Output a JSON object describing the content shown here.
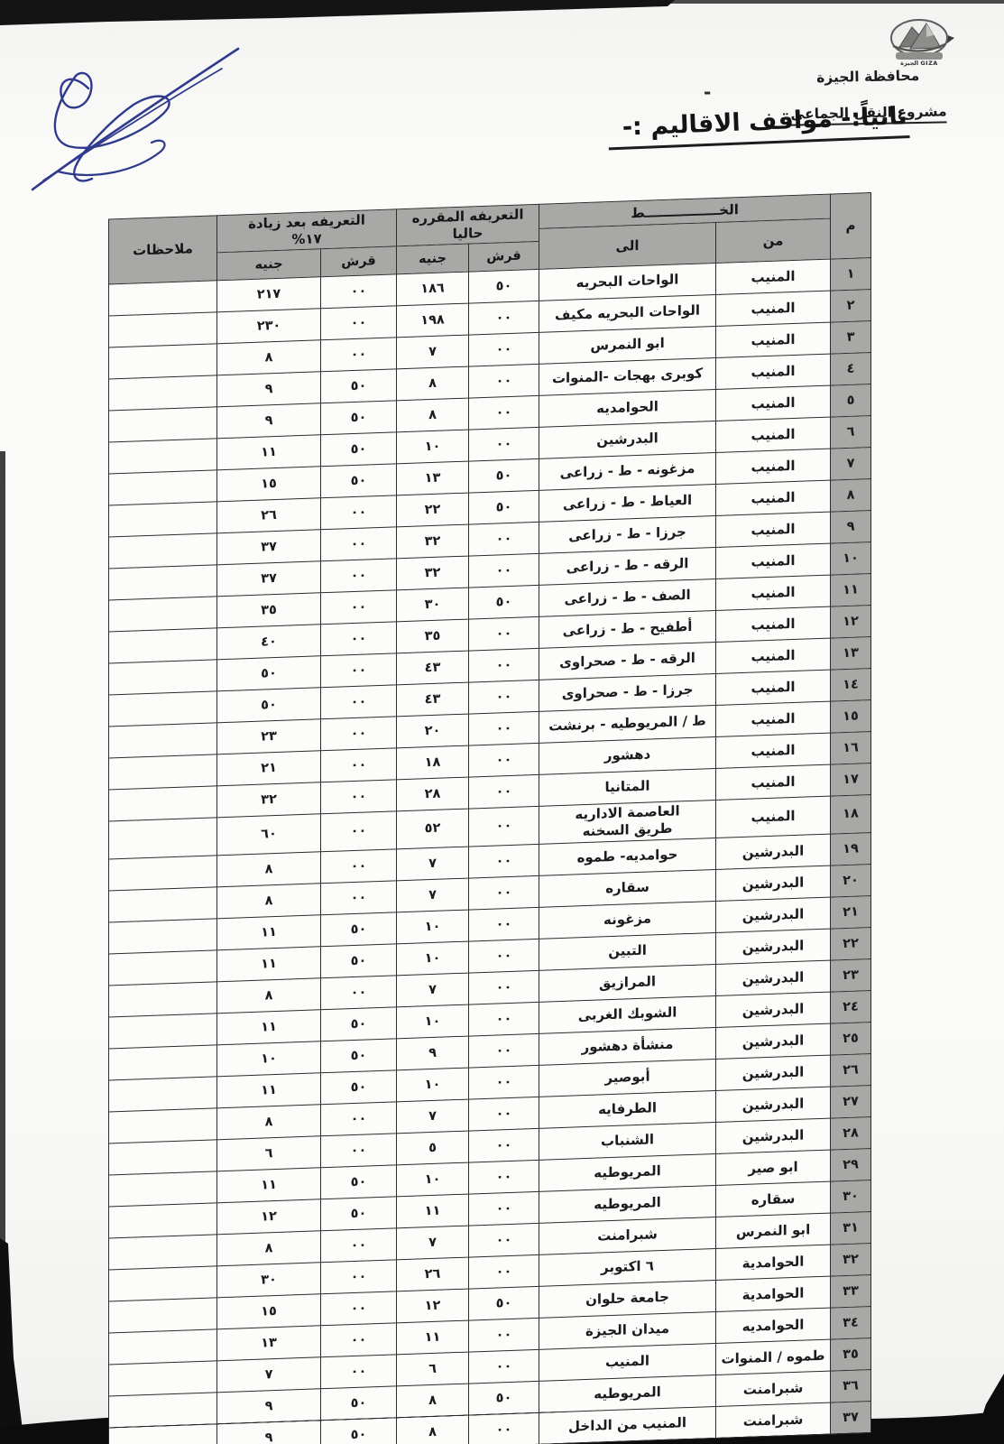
{
  "page": {
    "org_line1": "محافظة الجيزة",
    "org_line2": "مشروع النقل الجماعى",
    "dash": "-",
    "section_title": "ثانياً:- مواقف الاقاليم :-",
    "logo_caption": "الجيزة GIZA"
  },
  "table": {
    "headers": {
      "no": "م",
      "line": "الخــــــــــــــــط",
      "from": "من",
      "to": "الى",
      "current_tariff_line1": "التعريفه المقرره",
      "current_tariff_line2": "حاليا",
      "increased_tariff_line1": "التعريفه بعد زيادة",
      "increased_tariff_line2": "١٧%",
      "qirsh": "قرش",
      "genih": "جنيه",
      "notes": "ملاحظات"
    },
    "rows": [
      [
        "١",
        "المنيب",
        "الواحات البحريه",
        "٥٠",
        "١٨٦",
        "٠٠",
        "٢١٧",
        ""
      ],
      [
        "٢",
        "المنيب",
        "الواحات البحريه مكيف",
        "٠٠",
        "١٩٨",
        "٠٠",
        "٢٣٠",
        ""
      ],
      [
        "٣",
        "المنيب",
        "ابو النمرس",
        "٠٠",
        "٧",
        "٠٠",
        "٨",
        ""
      ],
      [
        "٤",
        "المنيب",
        "كوبرى بهجات -المنوات",
        "٠٠",
        "٨",
        "٥٠",
        "٩",
        ""
      ],
      [
        "٥",
        "المنيب",
        "الحوامديه",
        "٠٠",
        "٨",
        "٥٠",
        "٩",
        ""
      ],
      [
        "٦",
        "المنيب",
        "البدرشين",
        "٠٠",
        "١٠",
        "٥٠",
        "١١",
        ""
      ],
      [
        "٧",
        "المنيب",
        "مزغونه - ط - زراعى",
        "٥٠",
        "١٣",
        "٥٠",
        "١٥",
        ""
      ],
      [
        "٨",
        "المنيب",
        "العياط - ط - زراعى",
        "٥٠",
        "٢٢",
        "٠٠",
        "٢٦",
        ""
      ],
      [
        "٩",
        "المنيب",
        "جرزا - ط - زراعى",
        "٠٠",
        "٣٢",
        "٠٠",
        "٣٧",
        ""
      ],
      [
        "١٠",
        "المنيب",
        "الرقه - ط - زراعى",
        "٠٠",
        "٣٢",
        "٠٠",
        "٣٧",
        ""
      ],
      [
        "١١",
        "المنيب",
        "الصف - ط - زراعى",
        "٥٠",
        "٣٠",
        "٠٠",
        "٣٥",
        ""
      ],
      [
        "١٢",
        "المنيب",
        "أطفيح - ط - زراعى",
        "٠٠",
        "٣٥",
        "٠٠",
        "٤٠",
        ""
      ],
      [
        "١٣",
        "المنيب",
        "الرقه - ط - صحراوى",
        "٠٠",
        "٤٣",
        "٠٠",
        "٥٠",
        ""
      ],
      [
        "١٤",
        "المنيب",
        "جرزا - ط - صحراوى",
        "٠٠",
        "٤٣",
        "٠٠",
        "٥٠",
        ""
      ],
      [
        "١٥",
        "المنيب",
        "ط / المريوطيه - برنشت",
        "٠٠",
        "٢٠",
        "٠٠",
        "٢٣",
        ""
      ],
      [
        "١٦",
        "المنيب",
        "دهشور",
        "٠٠",
        "١٨",
        "٠٠",
        "٢١",
        ""
      ],
      [
        "١٧",
        "المنيب",
        "المتانيا",
        "٠٠",
        "٢٨",
        "٠٠",
        "٣٢",
        ""
      ],
      [
        "١٨",
        "المنيب",
        "العاصمة الاداريه\nطريق السخنه",
        "٠٠",
        "٥٢",
        "٠٠",
        "٦٠",
        ""
      ],
      [
        "١٩",
        "البدرشين",
        "حوامديه- طموه",
        "٠٠",
        "٧",
        "٠٠",
        "٨",
        ""
      ],
      [
        "٢٠",
        "البدرشين",
        "سقاره",
        "٠٠",
        "٧",
        "٠٠",
        "٨",
        ""
      ],
      [
        "٢١",
        "البدرشين",
        "مزغونه",
        "٠٠",
        "١٠",
        "٥٠",
        "١١",
        ""
      ],
      [
        "٢٢",
        "البدرشين",
        "التبين",
        "٠٠",
        "١٠",
        "٥٠",
        "١١",
        ""
      ],
      [
        "٢٣",
        "البدرشين",
        "المرازيق",
        "٠٠",
        "٧",
        "٠٠",
        "٨",
        ""
      ],
      [
        "٢٤",
        "البدرشين",
        "الشوبك الغربى",
        "٠٠",
        "١٠",
        "٥٠",
        "١١",
        ""
      ],
      [
        "٢٥",
        "البدرشين",
        "منشأة دهشور",
        "٠٠",
        "٩",
        "٥٠",
        "١٠",
        ""
      ],
      [
        "٢٦",
        "البدرشين",
        "أبوصير",
        "٠٠",
        "١٠",
        "٥٠",
        "١١",
        ""
      ],
      [
        "٢٧",
        "البدرشين",
        "الطرفايه",
        "٠٠",
        "٧",
        "٠٠",
        "٨",
        ""
      ],
      [
        "٢٨",
        "البدرشين",
        "الشنباب",
        "٠٠",
        "٥",
        "٠٠",
        "٦",
        ""
      ],
      [
        "٢٩",
        "ابو صير",
        "المريوطيه",
        "٠٠",
        "١٠",
        "٥٠",
        "١١",
        ""
      ],
      [
        "٣٠",
        "سقاره",
        "المريوطيه",
        "٠٠",
        "١١",
        "٥٠",
        "١٢",
        ""
      ],
      [
        "٣١",
        "ابو النمرس",
        "شبرامنت",
        "٠٠",
        "٧",
        "٠٠",
        "٨",
        ""
      ],
      [
        "٣٢",
        "الحوامدية",
        "٦ اكتوبر",
        "٠٠",
        "٢٦",
        "٠٠",
        "٣٠",
        ""
      ],
      [
        "٣٣",
        "الحوامدية",
        "جامعة حلوان",
        "٥٠",
        "١٢",
        "٠٠",
        "١٥",
        ""
      ],
      [
        "٣٤",
        "الحوامديه",
        "ميدان الجيزة",
        "٠٠",
        "١١",
        "٠٠",
        "١٣",
        ""
      ],
      [
        "٣٥",
        "طموه / المنوات",
        "المنيب",
        "٠٠",
        "٦",
        "٠٠",
        "٧",
        ""
      ],
      [
        "٣٦",
        "شبرامنت",
        "المريوطيه",
        "٥٠",
        "٨",
        "٥٠",
        "٩",
        ""
      ],
      [
        "٣٧",
        "شبرامنت",
        "المنيب من الداخل",
        "٠٠",
        "٨",
        "٥٠",
        "٩",
        ""
      ]
    ]
  }
}
